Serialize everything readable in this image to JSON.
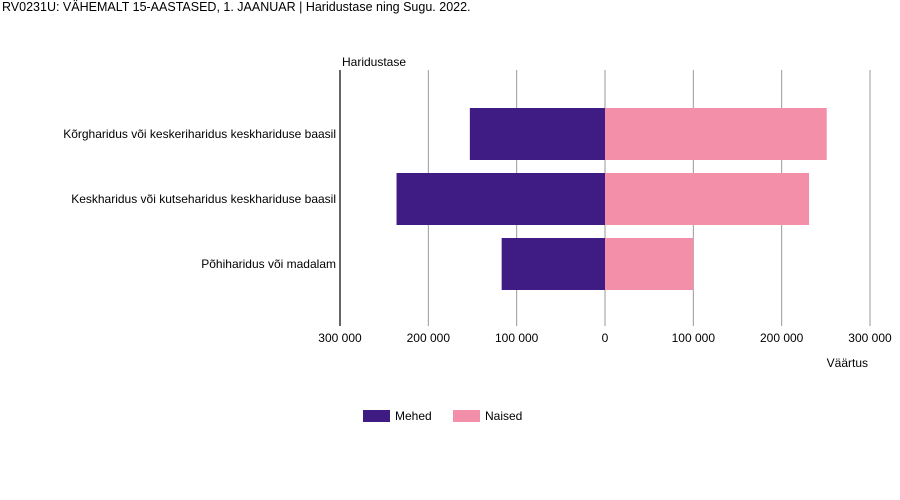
{
  "title": "RV0231U: VÄHEMALT 15-AASTASED, 1. JAANUAR | Haridustase ning Sugu. 2022.",
  "chart_data": {
    "type": "bar",
    "orientation": "horizontal",
    "layout": "population-pyramid",
    "title": "RV0231U: VÄHEMALT 15-AASTASED, 1. JAANUAR | Haridustase ning Sugu. 2022.",
    "ylabel": "Haridustase",
    "xlabel": "Väärtus",
    "categories": [
      "Kõrgharidus või keskeriharidus keskhariduse baasil",
      "Keskharidus või kutseharidus keskhariduse baasil",
      "Põhiharidus või madalam"
    ],
    "series": [
      {
        "name": "Mehed",
        "color": "#3f1c84",
        "values": [
          153000,
          236000,
          117000
        ]
      },
      {
        "name": "Naised",
        "color": "#f48fa9",
        "values": [
          251000,
          231000,
          100000
        ]
      }
    ],
    "xlim": [
      -300000,
      300000
    ],
    "xticks": [
      -300000,
      -200000,
      -100000,
      0,
      100000,
      200000,
      300000
    ],
    "xtick_labels": [
      "300 000",
      "200 000",
      "100 000",
      "0",
      "100 000",
      "200 000",
      "300 000"
    ],
    "grid": true,
    "legend_position": "bottom"
  }
}
